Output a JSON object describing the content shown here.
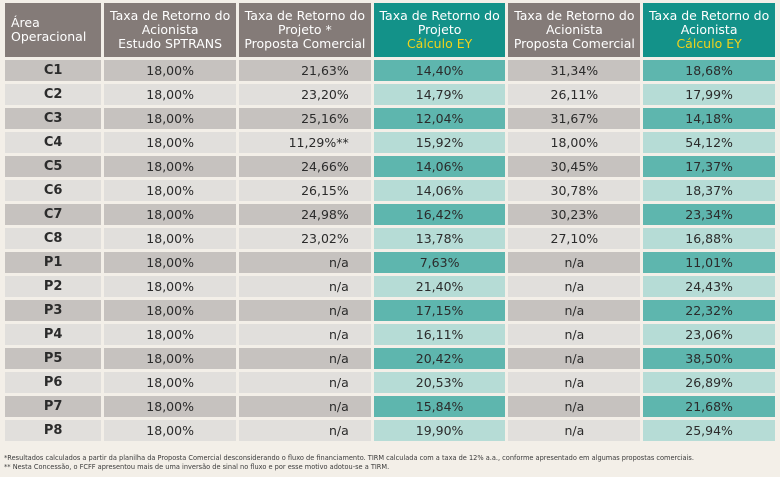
{
  "headers": {
    "area": [
      "Área",
      "Operacional"
    ],
    "col1": [
      "Taxa de Retorno do",
      "Acionista",
      "Estudo SPTRANS"
    ],
    "col2": [
      "Taxa de Retorno do",
      "Projeto *",
      "Proposta Comercial"
    ],
    "col3": [
      "Taxa de Retorno do",
      "Projeto",
      "Cálculo EY"
    ],
    "col4": [
      "Taxa de Retorno do",
      "Acionista",
      "Proposta Comercial"
    ],
    "col5": [
      "Taxa de Retorno do",
      "Acionista",
      "Cálculo EY"
    ]
  },
  "rows": [
    [
      "C1",
      "18,00%",
      "21,63%",
      "14,40%",
      "31,34%",
      "18,68%"
    ],
    [
      "C2",
      "18,00%",
      "23,20%",
      "14,79%",
      "26,11%",
      "17,99%"
    ],
    [
      "C3",
      "18,00%",
      "25,16%",
      "12,04%",
      "31,67%",
      "14,18%"
    ],
    [
      "C4",
      "18,00%",
      "11,29%**",
      "15,92%",
      "18,00%",
      "54,12%"
    ],
    [
      "C5",
      "18,00%",
      "24,66%",
      "14,06%",
      "30,45%",
      "17,37%"
    ],
    [
      "C6",
      "18,00%",
      "26,15%",
      "14,06%",
      "30,78%",
      "18,37%"
    ],
    [
      "C7",
      "18,00%",
      "24,98%",
      "16,42%",
      "30,23%",
      "23,34%"
    ],
    [
      "C8",
      "18,00%",
      "23,02%",
      "13,78%",
      "27,10%",
      "16,88%"
    ],
    [
      "P1",
      "18,00%",
      "n/a",
      "7,63%",
      "n/a",
      "11,01%"
    ],
    [
      "P2",
      "18,00%",
      "n/a",
      "21,40%",
      "n/a",
      "24,43%"
    ],
    [
      "P3",
      "18,00%",
      "n/a",
      "17,15%",
      "n/a",
      "22,32%"
    ],
    [
      "P4",
      "18,00%",
      "n/a",
      "16,11%",
      "n/a",
      "23,06%"
    ],
    [
      "P5",
      "18,00%",
      "n/a",
      "20,42%",
      "n/a",
      "38,50%"
    ],
    [
      "P6",
      "18,00%",
      "n/a",
      "20,53%",
      "n/a",
      "26,89%"
    ],
    [
      "P7",
      "18,00%",
      "n/a",
      "15,84%",
      "n/a",
      "21,68%"
    ],
    [
      "P8",
      "18,00%",
      "n/a",
      "19,90%",
      "n/a",
      "25,94%"
    ]
  ],
  "footnotes": [
    "*Resultados calculados a partir da planilha da Proposta Comercial desconsiderando o fluxo de financiamento. TIRM calculada com a taxa de 12% a.a., conforme apresentado em algumas propostas comerciais.",
    "** Nesta Concessão, o FCFF apresentou mais de uma inversão de sinal no fluxo e por esse motivo adotou-se a TIRM."
  ],
  "colors": {
    "header_gray": "#847b78",
    "header_teal": "#139289",
    "ey_highlight": "#f2d31a",
    "row_dark_gray": "#c6c2bf",
    "row_dark_teal": "#5eb6ae",
    "row_light_gray": "#e1dfdc",
    "row_light_teal": "#b6dcd6"
  }
}
